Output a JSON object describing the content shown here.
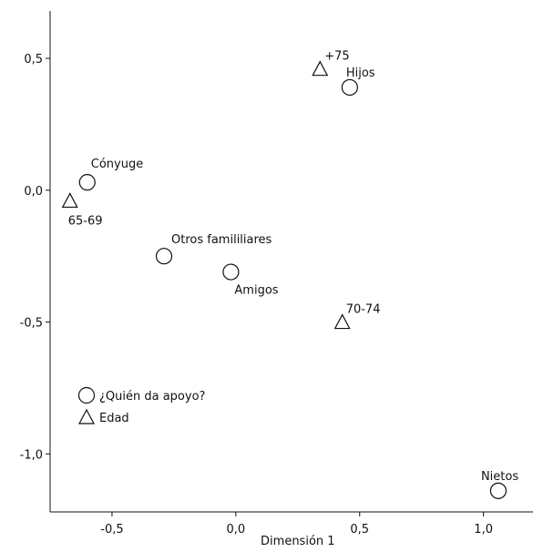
{
  "chart_data": {
    "type": "scatter",
    "xlabel": "Dimensión 1",
    "ylabel": "",
    "xlim": [
      -0.75,
      1.2
    ],
    "ylim": [
      -1.22,
      0.68
    ],
    "xticks": [
      -0.5,
      0.0,
      0.5,
      1.0
    ],
    "xtick_labels": [
      "-0,5",
      "0,0",
      "0,5",
      "1,0"
    ],
    "yticks": [
      0.5,
      0.0,
      -0.5,
      -1.0
    ],
    "ytick_labels": [
      "0,5",
      "0,0",
      "-0,5",
      "-1,0"
    ],
    "grid": false,
    "legend_position": "bottom-left",
    "series": [
      {
        "name": "¿Quién da apoyo?",
        "marker": "circle",
        "points": [
          {
            "label": "Cónyuge",
            "x": -0.6,
            "y": 0.03
          },
          {
            "label": "Hijos",
            "x": 0.46,
            "y": 0.39
          },
          {
            "label": "Otros famililiares",
            "x": -0.29,
            "y": -0.25
          },
          {
            "label": "Amigos",
            "x": -0.02,
            "y": -0.31
          },
          {
            "label": "Nietos",
            "x": 1.06,
            "y": -1.14
          }
        ]
      },
      {
        "name": "Edad",
        "marker": "triangle",
        "points": [
          {
            "label": "+75",
            "x": 0.34,
            "y": 0.46
          },
          {
            "label": "65-69",
            "x": -0.67,
            "y": -0.04
          },
          {
            "label": "70-74",
            "x": 0.43,
            "y": -0.5
          }
        ]
      }
    ]
  }
}
